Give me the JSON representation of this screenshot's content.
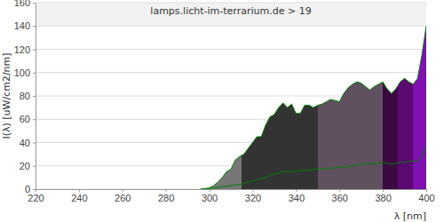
{
  "chart_data": {
    "type": "area",
    "title": "lamps.licht-im-terrarium.de > 19",
    "x_label": "λ [nm]",
    "y_label": "I(λ)  [uW/cm2/nm]",
    "x": [
      296,
      298,
      300,
      302,
      304,
      306,
      308,
      310,
      312,
      314,
      316,
      318,
      320,
      322,
      324,
      326,
      328,
      330,
      332,
      334,
      336,
      338,
      340,
      342,
      344,
      346,
      348,
      350,
      352,
      354,
      356,
      358,
      360,
      362,
      364,
      366,
      368,
      370,
      372,
      374,
      376,
      378,
      380,
      382,
      384,
      386,
      388,
      390,
      392,
      394,
      396,
      398,
      400
    ],
    "series": [
      {
        "type": "area",
        "color": "#008000",
        "values": [
          0,
          0.5,
          1,
          3,
          6,
          10,
          15,
          17,
          25,
          28,
          30,
          35,
          40,
          45,
          45,
          55,
          62,
          64,
          70,
          74,
          70,
          73,
          65,
          65,
          72,
          72,
          70,
          72,
          73,
          75,
          77,
          76,
          75,
          82,
          87,
          90,
          92,
          91,
          88,
          85,
          88,
          90,
          92,
          86,
          82,
          86,
          92,
          95,
          92,
          90,
          95,
          115,
          140
        ],
        "regions": [
          {
            "from": 296,
            "to": 315,
            "color": "#777777"
          },
          {
            "from": 315,
            "to": 350,
            "color": "#333333"
          },
          {
            "from": 350,
            "to": 380,
            "color": "#605060"
          },
          {
            "from": 380,
            "to": 387,
            "color": "#3a0a40"
          },
          {
            "from": 387,
            "to": 394,
            "color": "#5a0a70"
          },
          {
            "from": 394,
            "to": 400,
            "color": "#8010b0"
          }
        ]
      },
      {
        "type": "line",
        "color": "#008000",
        "values": [
          0,
          0.2,
          0.5,
          1,
          1.5,
          2,
          2.5,
          3,
          3.5,
          4,
          5,
          6,
          7,
          8,
          9,
          10,
          12,
          13,
          14,
          15,
          15,
          15,
          15,
          16,
          16,
          16,
          17,
          17,
          17,
          18,
          18,
          18,
          19,
          19,
          19,
          20,
          21,
          21,
          22,
          22,
          22,
          22,
          23,
          22,
          22,
          22,
          23,
          23,
          24,
          24,
          24,
          28,
          36
        ]
      }
    ],
    "xlim": [
      220,
      400
    ],
    "ylim": [
      0,
      160
    ],
    "xticks": [
      220,
      240,
      260,
      280,
      300,
      320,
      340,
      360,
      380,
      400
    ],
    "yticks": [
      0,
      20,
      40,
      60,
      80,
      100,
      120,
      140,
      160
    ],
    "grid": true
  }
}
